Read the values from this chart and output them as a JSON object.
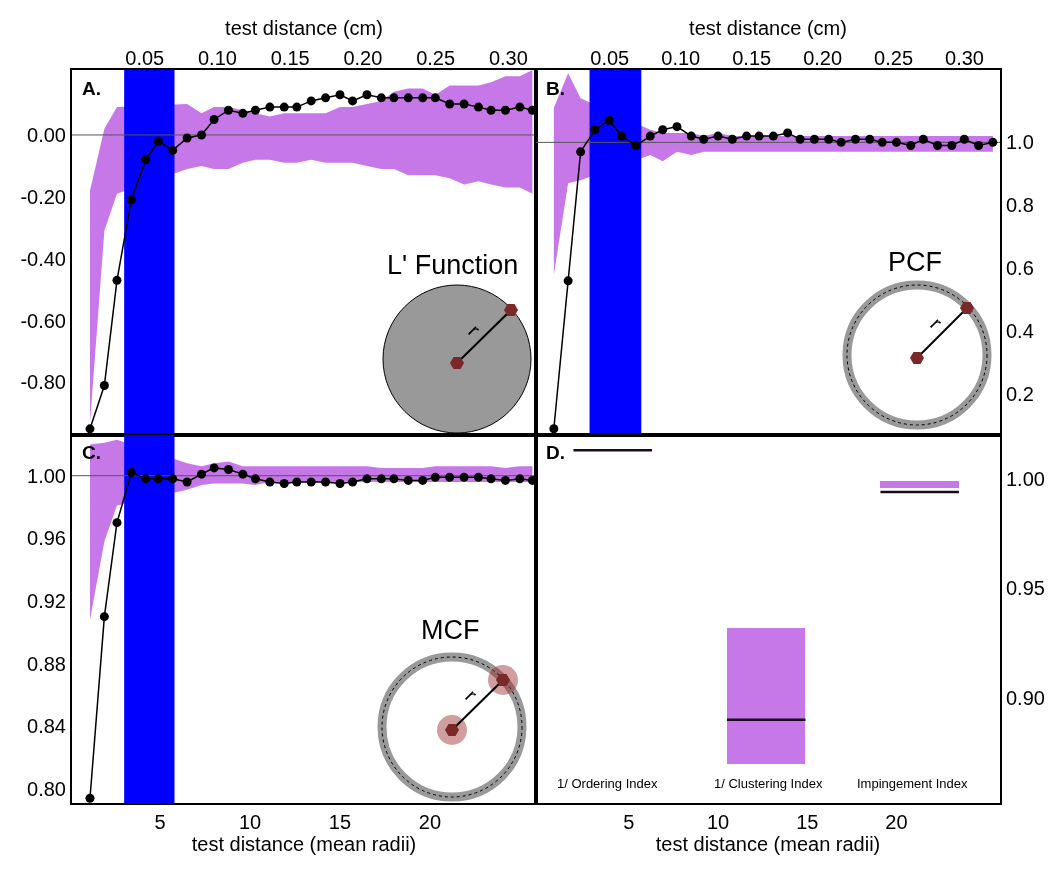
{
  "chart_data": [
    {
      "type": "line",
      "x2label": "test distance (cm)",
      "xlim": [
        0.1,
        25.9
      ],
      "x2lim": [
        0,
        0.319
      ],
      "x2ticks": [
        0.05,
        {
          "value": 0.1,
          "label": "0.10"
        },
        0.15,
        {
          "value": 0.2,
          "label": "0.20"
        },
        0.25,
        {
          "value": 0.3,
          "label": "0.30"
        }
      ],
      "ylim": [
        -0.97,
        0.21
      ],
      "yticks": [
        {
          "value": -0.8,
          "label": "-0.80"
        },
        {
          "value": -0.6,
          "label": "-0.60"
        },
        {
          "value": -0.4,
          "label": "-0.40"
        },
        {
          "value": -0.2,
          "label": "-0.20"
        },
        {
          "value": 0,
          "label": "0.00"
        }
      ],
      "tick_labels": "y",
      "grid": false,
      "marker": "circle",
      "line_style": "solid",
      "x": [
        1.1,
        1.9,
        2.6,
        3.4,
        4.2,
        4.9,
        5.7,
        6.5,
        7.3,
        8.0,
        8.8,
        9.6,
        10.3,
        11.1,
        11.9,
        12.6,
        13.4,
        14.2,
        15.0,
        15.7,
        16.5,
        17.3,
        18.0,
        18.8,
        19.6,
        20.3,
        21.1,
        21.9,
        22.7,
        23.4,
        24.2,
        25.0,
        25.7
      ],
      "series": [
        {
          "color": "#000000",
          "values": [
            -0.95,
            -0.81,
            -0.47,
            -0.21,
            -0.08,
            -0.02,
            -0.05,
            -0.01,
            0.0,
            0.05,
            0.08,
            0.07,
            0.08,
            0.09,
            0.09,
            0.09,
            0.11,
            0.12,
            0.13,
            0.11,
            0.13,
            0.12,
            0.12,
            0.12,
            0.12,
            0.12,
            0.1,
            0.1,
            0.09,
            0.08,
            0.08,
            0.09,
            0.08
          ],
          "upper": [
            -0.18,
            0.02,
            0.09,
            null,
            null,
            null,
            null,
            0.1,
            0.07,
            0.09,
            0.09,
            0.08,
            0.07,
            0.06,
            0.07,
            0.07,
            0.07,
            0.07,
            0.09,
            0.09,
            0.1,
            0.11,
            0.14,
            0.15,
            0.15,
            0.13,
            0.16,
            0.16,
            0.16,
            0.17,
            0.19,
            0.19,
            0.21
          ],
          "lower": [
            -0.93,
            -0.31,
            -0.19,
            null,
            null,
            null,
            null,
            -0.11,
            -0.1,
            -0.11,
            -0.11,
            -0.09,
            -0.08,
            -0.08,
            -0.09,
            -0.09,
            -0.08,
            -0.09,
            -0.09,
            -0.09,
            -0.1,
            -0.11,
            -0.11,
            -0.13,
            -0.13,
            -0.13,
            -0.14,
            -0.16,
            -0.15,
            -0.16,
            -0.17,
            -0.17,
            -0.19
          ]
        }
      ],
      "bands": [
        {
          "axis": "x",
          "from": 3.0,
          "to": 5.8,
          "color": "#0000ff"
        }
      ],
      "ref_lines": [
        {
          "axis": "y",
          "value": 0,
          "color": "#555555"
        }
      ],
      "annotations": [
        "A.",
        "L' Function",
        "r"
      ]
    },
    {
      "type": "line",
      "x2label": "test distance (cm)",
      "xlim": [
        -0.2,
        25.8
      ],
      "x2lim": [
        -0.002,
        0.325
      ],
      "x2ticks": [
        0.05,
        {
          "value": 0.1,
          "label": "0.10"
        },
        0.15,
        {
          "value": 0.2,
          "label": "0.20"
        },
        0.25,
        {
          "value": 0.3,
          "label": "0.30"
        }
      ],
      "ylim": [
        0.07,
        1.23
      ],
      "yticks": [
        0.2,
        0.4,
        0.6,
        0.8,
        {
          "value": 1,
          "label": "1.0"
        }
      ],
      "tick_labels": "y",
      "grid": false,
      "marker": "circle",
      "line_style": "solid",
      "x": [
        0.8,
        1.6,
        2.3,
        3.1,
        3.9,
        4.6,
        5.4,
        6.2,
        6.9,
        7.7,
        8.5,
        9.2,
        10.0,
        10.8,
        11.6,
        12.3,
        13.1,
        13.9,
        14.6,
        15.4,
        16.2,
        16.9,
        17.7,
        18.5,
        19.2,
        20.0,
        20.8,
        21.5,
        22.3,
        23.1,
        23.8,
        24.6,
        25.4
      ],
      "series": [
        {
          "color": "#000000",
          "values": [
            0.09,
            0.56,
            0.97,
            1.04,
            1.07,
            1.02,
            0.99,
            1.02,
            1.04,
            1.05,
            1.02,
            1.01,
            1.02,
            1.01,
            1.02,
            1.02,
            1.02,
            1.03,
            1.01,
            1.01,
            1.01,
            1.0,
            1.01,
            1.01,
            1.0,
            1.0,
            0.99,
            1.01,
            0.99,
            0.99,
            1.01,
            0.99,
            1.0
          ],
          "upper": [
            1.11,
            1.22,
            1.14,
            null,
            null,
            null,
            null,
            1.04,
            1.03,
            1.03,
            1.03,
            1.02,
            1.03,
            1.02,
            1.02,
            1.02,
            1.02,
            1.02,
            1.02,
            1.02,
            1.02,
            1.02,
            1.02,
            1.02,
            1.02,
            1.02,
            1.02,
            1.02,
            1.02,
            1.02,
            1.02,
            1.02,
            1.02
          ],
          "lower": [
            0.58,
            0.87,
            0.88,
            null,
            null,
            null,
            null,
            0.96,
            0.94,
            0.97,
            0.96,
            0.97,
            0.97,
            0.97,
            0.97,
            0.97,
            0.97,
            0.97,
            0.97,
            0.97,
            0.97,
            0.97,
            0.97,
            0.97,
            0.97,
            0.97,
            0.97,
            0.97,
            0.97,
            0.97,
            0.97,
            0.97,
            0.97
          ]
        }
      ],
      "bands": [
        {
          "axis": "x",
          "from": 2.8,
          "to": 5.7,
          "color": "#0000ff"
        }
      ],
      "ref_lines": [
        {
          "axis": "y",
          "value": 1.0,
          "color": "#555555"
        }
      ],
      "annotations": [
        "B.",
        "PCF",
        "r"
      ]
    },
    {
      "type": "line",
      "xlabel": "test distance (mean radii)",
      "xlim": [
        0.1,
        25.9
      ],
      "xticks": [
        5,
        10,
        15,
        20
      ],
      "ylim": [
        0.791,
        1.026
      ],
      "yticks": [
        {
          "value": 0.8,
          "label": "0.80"
        },
        0.84,
        0.88,
        0.92,
        0.96,
        {
          "value": 1,
          "label": "1.00"
        }
      ],
      "grid": false,
      "marker": "circle",
      "line_style": "solid",
      "x": [
        1.1,
        1.9,
        2.6,
        3.4,
        4.2,
        4.9,
        5.7,
        6.5,
        7.3,
        8.0,
        8.8,
        9.6,
        10.3,
        11.1,
        11.9,
        12.6,
        13.4,
        14.2,
        15.0,
        15.7,
        16.5,
        17.3,
        18.0,
        18.8,
        19.6,
        20.3,
        21.1,
        21.9,
        22.7,
        23.4,
        24.2,
        25.0,
        25.7
      ],
      "series": [
        {
          "color": "#000000",
          "values": [
            0.794,
            0.91,
            0.97,
            1.002,
            0.998,
            0.998,
            0.998,
            0.996,
            1.001,
            1.005,
            1.004,
            1.001,
            0.998,
            0.996,
            0.995,
            0.996,
            0.996,
            0.996,
            0.995,
            0.996,
            0.998,
            0.998,
            0.998,
            0.997,
            0.997,
            0.999,
            0.999,
            0.999,
            0.999,
            0.998,
            0.997,
            0.998,
            0.997
          ],
          "upper": [
            1.02,
            1.021,
            1.023,
            null,
            null,
            null,
            null,
            1.008,
            1.006,
            1.008,
            1.009,
            1.006,
            1.006,
            1.006,
            1.006,
            1.006,
            1.006,
            1.006,
            1.006,
            1.006,
            1.006,
            1.005,
            1.005,
            1.005,
            1.005,
            1.006,
            1.006,
            1.006,
            1.006,
            1.006,
            1.005,
            1.006,
            1.006
          ],
          "lower": [
            0.908,
            0.958,
            0.981,
            null,
            null,
            null,
            null,
            0.991,
            0.994,
            0.995,
            0.995,
            0.995,
            0.994,
            0.996,
            0.996,
            0.996,
            0.996,
            0.996,
            0.996,
            0.996,
            0.996,
            0.996,
            0.996,
            0.996,
            0.996,
            0.996,
            0.996,
            0.996,
            0.996,
            0.996,
            0.996,
            0.996,
            0.996
          ]
        }
      ],
      "bands": [
        {
          "axis": "x",
          "from": 3.0,
          "to": 5.8,
          "color": "#0000ff"
        }
      ],
      "ref_lines": [
        {
          "axis": "y",
          "value": 1.0,
          "color": "#555555"
        }
      ],
      "annotations": [
        "C.",
        "MCF",
        "r"
      ]
    },
    {
      "type": "bar",
      "xlabel": "test distance (mean radii)",
      "xlim": [
        -0.2,
        25.8
      ],
      "xticks": [
        5,
        10,
        15,
        20
      ],
      "ylim": [
        0.852,
        1.02
      ],
      "yticks": [
        {
          "value": 0.9,
          "label": "0.90"
        },
        0.95,
        {
          "value": 1,
          "label": "1.00"
        }
      ],
      "grid": false,
      "series": [
        {
          "type": "bar",
          "color": "#c678e8",
          "x": [
            12.7,
            21.3
          ],
          "values": [
            0.062,
            0.003
          ],
          "base": [
            0.87,
            0.996
          ]
        },
        {
          "type": "line",
          "color": "#1a0a1a",
          "x": [
            1.9,
            6.3,
            null,
            10.5,
            14.9,
            null,
            19.1,
            23.5
          ],
          "values": [
            1.013,
            1.013,
            null,
            0.89,
            0.89,
            null,
            0.994,
            0.994
          ]
        }
      ],
      "annotations": [
        "D.",
        "1/ Ordering Index",
        "1/ Clustering Index",
        "Impingement Index"
      ]
    }
  ]
}
